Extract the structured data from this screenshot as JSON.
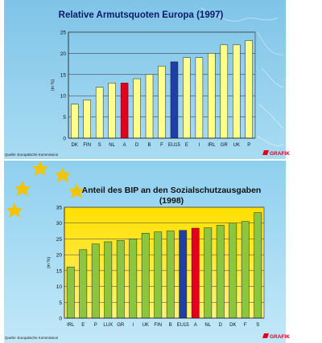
{
  "chart_data": [
    {
      "type": "bar",
      "title": "Relative Armutsquoten Europa (1997)",
      "ylabel": "(in %)",
      "xlabel": "",
      "ylim": [
        0,
        25
      ],
      "yticks": [
        0,
        5,
        10,
        15,
        20,
        25
      ],
      "categories": [
        "DK",
        "FIN",
        "S",
        "NL",
        "A",
        "D",
        "B",
        "F",
        "EU15",
        "E",
        "I",
        "IRL",
        "GR",
        "UK",
        "P"
      ],
      "values": [
        8,
        9,
        12,
        13,
        13,
        14,
        15,
        17,
        18,
        19,
        19,
        20,
        22,
        22,
        23
      ],
      "highlight": {
        "A": "#e3001b",
        "EU15": "#1f3fa8"
      },
      "bar_color": "#ffff8c",
      "grid": true,
      "source": "Quelle: Europäische Kommission",
      "credit": "GRAFIK"
    },
    {
      "type": "bar",
      "title": "Anteil des BIP an den Sozialschutzausgaben",
      "subtitle": "(1998)",
      "ylabel": "(in %)",
      "xlabel": "",
      "ylim": [
        0,
        35
      ],
      "yticks": [
        0,
        5,
        10,
        15,
        20,
        25,
        30,
        35
      ],
      "categories": [
        "IRL",
        "E",
        "P",
        "LUX",
        "GR",
        "I",
        "UK",
        "FIN",
        "B",
        "EU15",
        "A",
        "NL",
        "D",
        "DK",
        "F",
        "S"
      ],
      "values": [
        16.1,
        21.6,
        23.4,
        24.1,
        24.5,
        25.0,
        26.8,
        27.2,
        27.5,
        27.7,
        28.4,
        28.5,
        29.3,
        30.0,
        30.5,
        33.3
      ],
      "highlight": {
        "EU15": "#1f3fa8",
        "A": "#e3001b"
      },
      "bar_color": "#8cc63f",
      "grid": true,
      "source": "Quelle: Europäische Kommission",
      "credit": "GRAFIK"
    }
  ]
}
